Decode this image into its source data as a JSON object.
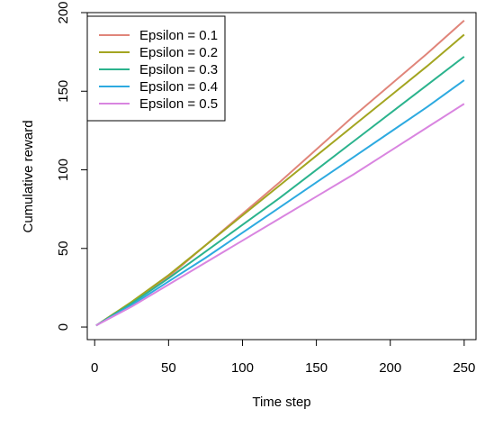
{
  "chart_data": {
    "type": "line",
    "title": "",
    "xlabel": "Time step",
    "ylabel": "Cumulative reward",
    "xlim": [
      -5,
      258
    ],
    "ylim": [
      -8,
      200
    ],
    "xticks": [
      0,
      50,
      100,
      150,
      200,
      250
    ],
    "yticks": [
      0,
      50,
      100,
      150,
      200
    ],
    "grid": false,
    "legend_position": "top-left",
    "series": [
      {
        "name": "Epsilon = 0.1",
        "color": "#E0857A",
        "x": [
          1,
          25,
          50,
          75,
          100,
          125,
          150,
          175,
          200,
          225,
          250
        ],
        "y": [
          1,
          15,
          32,
          52,
          72,
          92,
          113,
          134,
          154,
          174,
          195
        ]
      },
      {
        "name": "Epsilon = 0.2",
        "color": "#A3A520",
        "x": [
          1,
          25,
          50,
          75,
          100,
          125,
          150,
          175,
          200,
          225,
          250
        ],
        "y": [
          1,
          16,
          33,
          52,
          71,
          90,
          109,
          128,
          147,
          166,
          186
        ]
      },
      {
        "name": "Epsilon = 0.3",
        "color": "#2BB38D",
        "x": [
          1,
          25,
          50,
          75,
          100,
          125,
          150,
          175,
          200,
          225,
          250
        ],
        "y": [
          1,
          15,
          31,
          48,
          65,
          82,
          100,
          118,
          136,
          154,
          172
        ]
      },
      {
        "name": "Epsilon = 0.4",
        "color": "#2DAAE0",
        "x": [
          1,
          25,
          50,
          75,
          100,
          125,
          150,
          175,
          200,
          225,
          250
        ],
        "y": [
          1,
          14,
          29,
          44,
          60,
          76,
          92,
          108,
          124,
          140,
          157
        ]
      },
      {
        "name": "Epsilon = 0.5",
        "color": "#D985E0",
        "x": [
          1,
          25,
          50,
          75,
          100,
          125,
          150,
          175,
          200,
          225,
          250
        ],
        "y": [
          1,
          13,
          27,
          41,
          55,
          69,
          83,
          97,
          112,
          127,
          142
        ]
      }
    ]
  }
}
